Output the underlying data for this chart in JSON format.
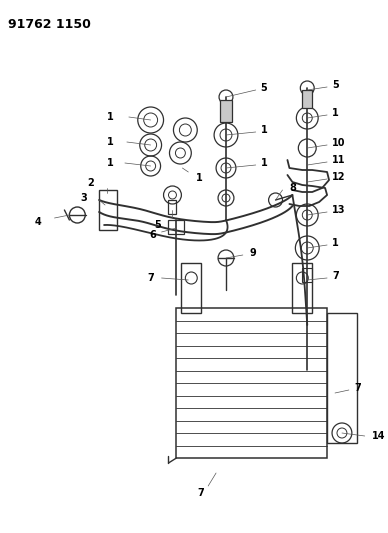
{
  "title": "91762 1150",
  "bg_color": "#ffffff",
  "lc": "#303030",
  "tc": "#000000",
  "title_fs": 9,
  "label_fs": 7,
  "fig_w": 3.88,
  "fig_h": 5.33,
  "dpi": 100
}
